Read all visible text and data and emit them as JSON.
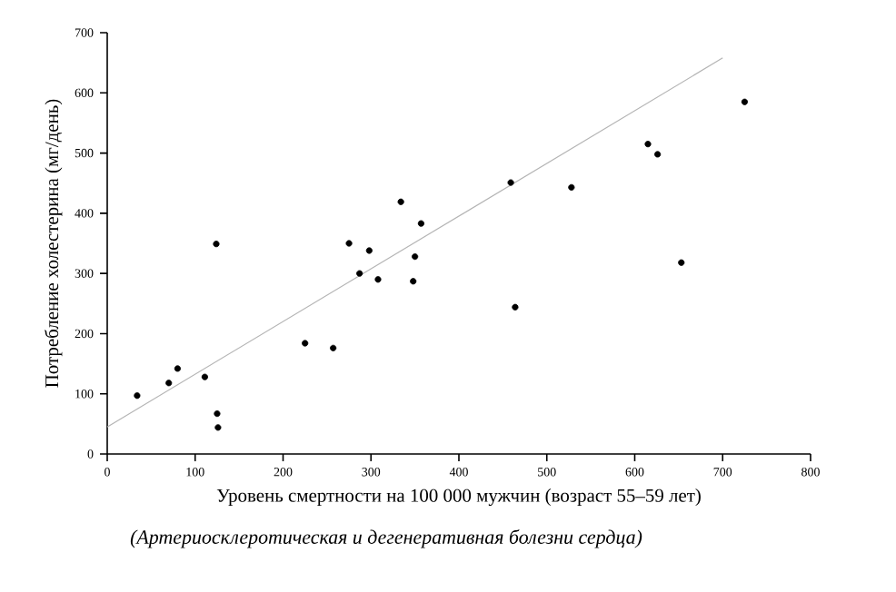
{
  "chart_data": {
    "type": "scatter",
    "xlabel": "Уровень смертности на 100 000 мужчин (возраст 55–59 лет)",
    "ylabel": "Потребление холестерина (мг/день)",
    "annotations": [
      "(Артериосклеротическая и дегенеративная болезни сердца)"
    ],
    "marker": "circle",
    "series": [
      {
        "color": "#000000",
        "x": [
          34,
          70,
          80,
          111,
          124,
          125,
          126,
          225,
          257,
          275,
          287,
          298,
          308,
          334,
          350,
          348,
          357,
          459,
          464,
          528,
          615,
          626,
          653,
          725
        ],
        "values": [
          97,
          118,
          142,
          128,
          349,
          67,
          44,
          184,
          176,
          350,
          300,
          338,
          290,
          419,
          328,
          287,
          383,
          451,
          244,
          443,
          515,
          498,
          318,
          585
        ]
      },
      {
        "type": "line",
        "marker": "none",
        "color": "#b4b4b4",
        "x": [
          0,
          700
        ],
        "values": [
          45,
          658
        ]
      }
    ],
    "xlim": [
      0,
      800
    ],
    "ylim": [
      0,
      700
    ],
    "xticks": [
      0,
      100,
      200,
      300,
      400,
      500,
      600,
      700,
      800
    ],
    "yticks": [
      0,
      100,
      200,
      300,
      400,
      500,
      600,
      700
    ],
    "grid": false
  }
}
